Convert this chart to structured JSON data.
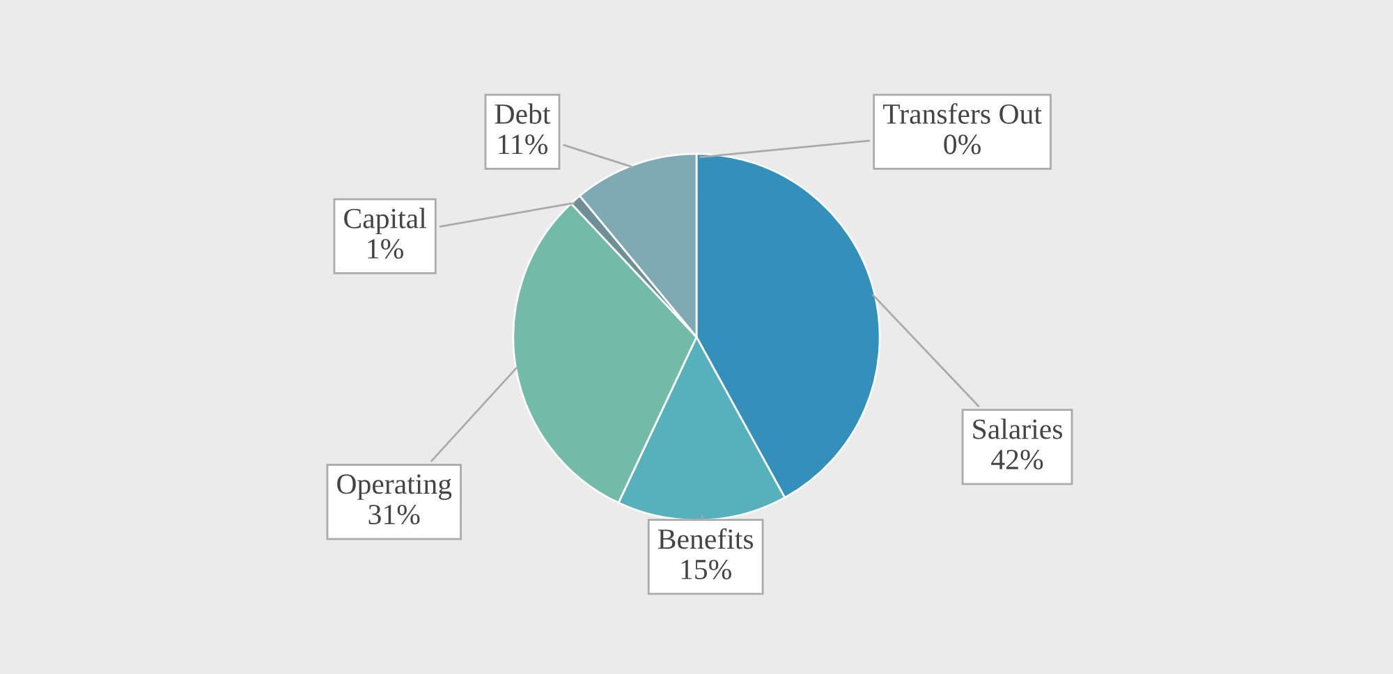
{
  "chart_data": {
    "type": "pie",
    "categories": [
      "Transfers Out",
      "Salaries",
      "Benefits",
      "Operating",
      "Capital",
      "Debt"
    ],
    "values": [
      0,
      42,
      15,
      31,
      1,
      11
    ],
    "value_labels": [
      "0%",
      "42%",
      "15%",
      "31%",
      "1%",
      "11%"
    ],
    "colors": [
      "#3a8fc0",
      "#3390bb",
      "#56b1bd",
      "#72bba8",
      "#6e8f95",
      "#7fa9b3"
    ],
    "legend": false
  }
}
